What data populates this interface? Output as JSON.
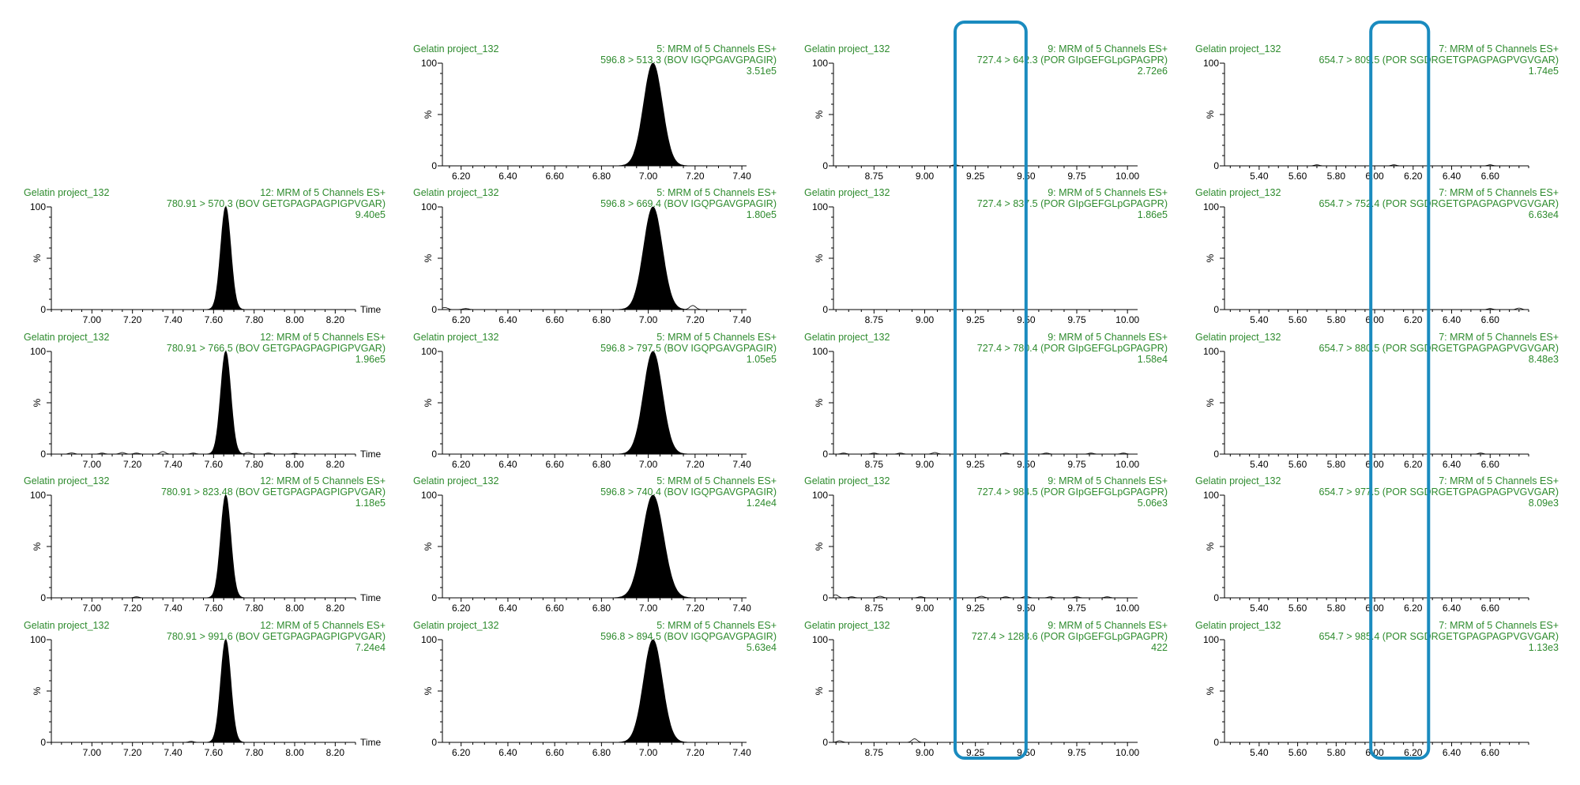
{
  "colors": {
    "header_text": "#2e8b2e",
    "axis": "#000000",
    "trace": "#000000",
    "peak_fill": "#000000",
    "highlight_box": "#1a8bbf"
  },
  "labels": {
    "time": "Time",
    "percent": "%",
    "y_max": "100",
    "y_min": "0"
  },
  "columns": [
    {
      "name": "col-1",
      "xlim": [
        6.8,
        8.3
      ],
      "ticks": [
        "7.00",
        "7.20",
        "7.40",
        "7.60",
        "7.80",
        "8.00",
        "8.20"
      ],
      "show_time": true
    },
    {
      "name": "col-2",
      "xlim": [
        6.12,
        7.42
      ],
      "ticks": [
        "6.20",
        "6.40",
        "6.60",
        "6.80",
        "7.00",
        "7.20",
        "7.40"
      ],
      "show_time": false
    },
    {
      "name": "col-3",
      "xlim": [
        8.55,
        10.05
      ],
      "ticks": [
        "8.75",
        "9.00",
        "9.25",
        "9.50",
        "9.75",
        "10.00"
      ],
      "show_time": false
    },
    {
      "name": "col-4",
      "xlim": [
        5.22,
        6.8
      ],
      "ticks": [
        "5.40",
        "5.60",
        "5.80",
        "6.00",
        "6.20",
        "6.40",
        "6.60"
      ],
      "show_time": false
    }
  ],
  "highlight_boxes": [
    {
      "column": 2,
      "x_range": [
        9.15,
        9.5
      ]
    },
    {
      "column": 3,
      "x_range": [
        5.98,
        6.28
      ]
    }
  ],
  "chart_data": [
    {
      "type": "line",
      "column": 1,
      "row": 1,
      "sample": "Gelatin project_132",
      "function": "12: MRM of 5 Channels ES+",
      "transition": "780.91 > 570.3 (BOV GETGPAGPAGPIGPVGAR)",
      "intensity": "9.40e5",
      "peak": {
        "rt": 7.66,
        "width": 0.025,
        "height": 100
      },
      "bumps": []
    },
    {
      "type": "line",
      "column": 1,
      "row": 2,
      "sample": "Gelatin project_132",
      "function": "12: MRM of 5 Channels ES+",
      "transition": "780.91 > 766.5 (BOV GETGPAGPAGPIGPVGAR)",
      "intensity": "1.96e5",
      "peak": {
        "rt": 7.66,
        "width": 0.025,
        "height": 100
      },
      "bumps": [
        [
          6.9,
          1.2
        ],
        [
          7.05,
          1
        ],
        [
          7.15,
          1.5
        ],
        [
          7.22,
          1
        ],
        [
          7.35,
          2.5
        ],
        [
          7.5,
          1
        ],
        [
          7.77,
          1.5
        ],
        [
          7.87,
          1
        ],
        [
          8.0,
          0.8
        ]
      ]
    },
    {
      "type": "line",
      "column": 1,
      "row": 3,
      "sample": "Gelatin project_132",
      "function": "12: MRM of 5 Channels ES+",
      "transition": "780.91 > 823.48 (BOV GETGPAGPAGPIGPVGAR)",
      "intensity": "1.18e5",
      "peak": {
        "rt": 7.66,
        "width": 0.025,
        "height": 100
      },
      "bumps": [
        [
          7.22,
          1
        ]
      ]
    },
    {
      "type": "line",
      "column": 1,
      "row": 4,
      "sample": "Gelatin project_132",
      "function": "12: MRM of 5 Channels ES+",
      "transition": "780.91 > 991.6 (BOV GETGPAGPAGPIGPVGAR)",
      "intensity": "7.24e4",
      "peak": {
        "rt": 7.66,
        "width": 0.025,
        "height": 100
      },
      "bumps": [
        [
          7.49,
          1
        ]
      ]
    },
    {
      "type": "line",
      "column": 2,
      "row": 0,
      "sample": "Gelatin project_132",
      "function": "5: MRM of 5 Channels ES+",
      "transition": "596.8 > 513.3 (BOV IGQPGAVGPAGIR)",
      "intensity": "3.51e5",
      "peak": {
        "rt": 7.02,
        "width": 0.04,
        "height": 100
      },
      "bumps": []
    },
    {
      "type": "line",
      "column": 2,
      "row": 1,
      "sample": "Gelatin project_132",
      "function": "5: MRM of 5 Channels ES+",
      "transition": "596.8 > 669.4 (BOV IGQPGAVGPAGIR)",
      "intensity": "1.80e5",
      "peak": {
        "rt": 7.02,
        "width": 0.04,
        "height": 100
      },
      "bumps": [
        [
          6.13,
          2
        ],
        [
          6.22,
          1
        ],
        [
          7.19,
          4
        ]
      ]
    },
    {
      "type": "line",
      "column": 2,
      "row": 2,
      "sample": "Gelatin project_132",
      "function": "5: MRM of 5 Channels ES+",
      "transition": "596.8 > 797.5 (BOV IGQPGAVGPAGIR)",
      "intensity": "1.05e5",
      "peak": {
        "rt": 7.02,
        "width": 0.04,
        "height": 100
      },
      "bumps": []
    },
    {
      "type": "line",
      "column": 2,
      "row": 3,
      "sample": "Gelatin project_132",
      "function": "5: MRM of 5 Channels ES+",
      "transition": "596.8 > 740.4 (BOV IGQPGAVGPAGIR)",
      "intensity": "1.24e4",
      "peak": {
        "rt": 7.02,
        "width": 0.045,
        "height": 100
      },
      "bumps": []
    },
    {
      "type": "line",
      "column": 2,
      "row": 4,
      "sample": "Gelatin project_132",
      "function": "5: MRM of 5 Channels ES+",
      "transition": "596.8 > 894.5 (BOV IGQPGAVGPAGIR)",
      "intensity": "5.63e4",
      "peak": {
        "rt": 7.02,
        "width": 0.04,
        "height": 100
      },
      "bumps": []
    },
    {
      "type": "line",
      "column": 3,
      "row": 0,
      "sample": "Gelatin project_132",
      "function": "9: MRM of 5 Channels ES+",
      "transition": "727.4 > 642.3 (POR GIpGEFGLpGPAGPR)",
      "intensity": "2.72e6",
      "peak": null,
      "bumps": [
        [
          9.15,
          1
        ]
      ]
    },
    {
      "type": "line",
      "column": 3,
      "row": 1,
      "sample": "Gelatin project_132",
      "function": "9: MRM of 5 Channels ES+",
      "transition": "727.4 > 837.5 (POR GIpGEFGLpGPAGPR)",
      "intensity": "1.86e5",
      "peak": null,
      "bumps": []
    },
    {
      "type": "line",
      "column": 3,
      "row": 2,
      "sample": "Gelatin project_132",
      "function": "9: MRM of 5 Channels ES+",
      "transition": "727.4 > 780.4 (POR GIpGEFGLpGPAGPR)",
      "intensity": "1.58e4",
      "peak": null,
      "bumps": [
        [
          8.6,
          1
        ],
        [
          8.75,
          1
        ],
        [
          8.88,
          1
        ],
        [
          9.05,
          1.5
        ],
        [
          9.4,
          1
        ],
        [
          9.6,
          1
        ],
        [
          9.82,
          1
        ],
        [
          9.98,
          1
        ]
      ]
    },
    {
      "type": "line",
      "column": 3,
      "row": 3,
      "sample": "Gelatin project_132",
      "function": "9: MRM of 5 Channels ES+",
      "transition": "727.4 > 984.5 (POR GIpGEFGLpGPAGPR)",
      "intensity": "5.06e3",
      "peak": null,
      "bumps": [
        [
          8.56,
          3
        ],
        [
          8.64,
          1
        ],
        [
          8.78,
          1.5
        ],
        [
          8.98,
          1
        ],
        [
          9.28,
          1.5
        ],
        [
          9.4,
          1
        ],
        [
          9.5,
          1.5
        ],
        [
          9.62,
          1
        ],
        [
          9.75,
          1
        ],
        [
          9.9,
          1
        ]
      ]
    },
    {
      "type": "line",
      "column": 3,
      "row": 4,
      "sample": "Gelatin project_132",
      "function": "9: MRM of 5 Channels ES+",
      "transition": "727.4 > 1283.6 (POR GIpGEFGLpGPAGPR)",
      "intensity": "422",
      "peak": null,
      "bumps": [
        [
          8.58,
          1.5
        ],
        [
          8.95,
          3.5
        ]
      ]
    },
    {
      "type": "line",
      "column": 4,
      "row": 0,
      "sample": "Gelatin project_132",
      "function": "7: MRM of 5 Channels ES+",
      "transition": "654.7 > 809.5 (POR SGDRGETGPAGPAGPVGVGAR)",
      "intensity": "1.74e5",
      "peak": null,
      "bumps": [
        [
          5.7,
          1
        ],
        [
          6.1,
          1
        ],
        [
          6.6,
          1
        ]
      ]
    },
    {
      "type": "line",
      "column": 4,
      "row": 1,
      "sample": "Gelatin project_132",
      "function": "7: MRM of 5 Channels ES+",
      "transition": "654.7 > 752.4 (POR SGDRGETGPAGPAGPVGVGAR)",
      "intensity": "6.63e4",
      "peak": null,
      "bumps": [
        [
          6.6,
          1
        ],
        [
          6.75,
          1.5
        ]
      ]
    },
    {
      "type": "line",
      "column": 4,
      "row": 2,
      "sample": "Gelatin project_132",
      "function": "7: MRM of 5 Channels ES+",
      "transition": "654.7 > 880.5 (POR SGDRGETGPAGPAGPVGVGAR)",
      "intensity": "8.48e3",
      "peak": null,
      "bumps": [
        [
          6.55,
          1
        ]
      ]
    },
    {
      "type": "line",
      "column": 4,
      "row": 3,
      "sample": "Gelatin project_132",
      "function": "7: MRM of 5 Channels ES+",
      "transition": "654.7 > 977.5 (POR SGDRGETGPAGPAGPVGVGAR)",
      "intensity": "8.09e3",
      "peak": null,
      "bumps": []
    },
    {
      "type": "line",
      "column": 4,
      "row": 4,
      "sample": "Gelatin project_132",
      "function": "7: MRM of 5 Channels ES+",
      "transition": "654.7 > 985.4 (POR SGDRGETGPAGPAGPVGVGAR)",
      "intensity": "1.13e3",
      "peak": null,
      "bumps": []
    }
  ]
}
